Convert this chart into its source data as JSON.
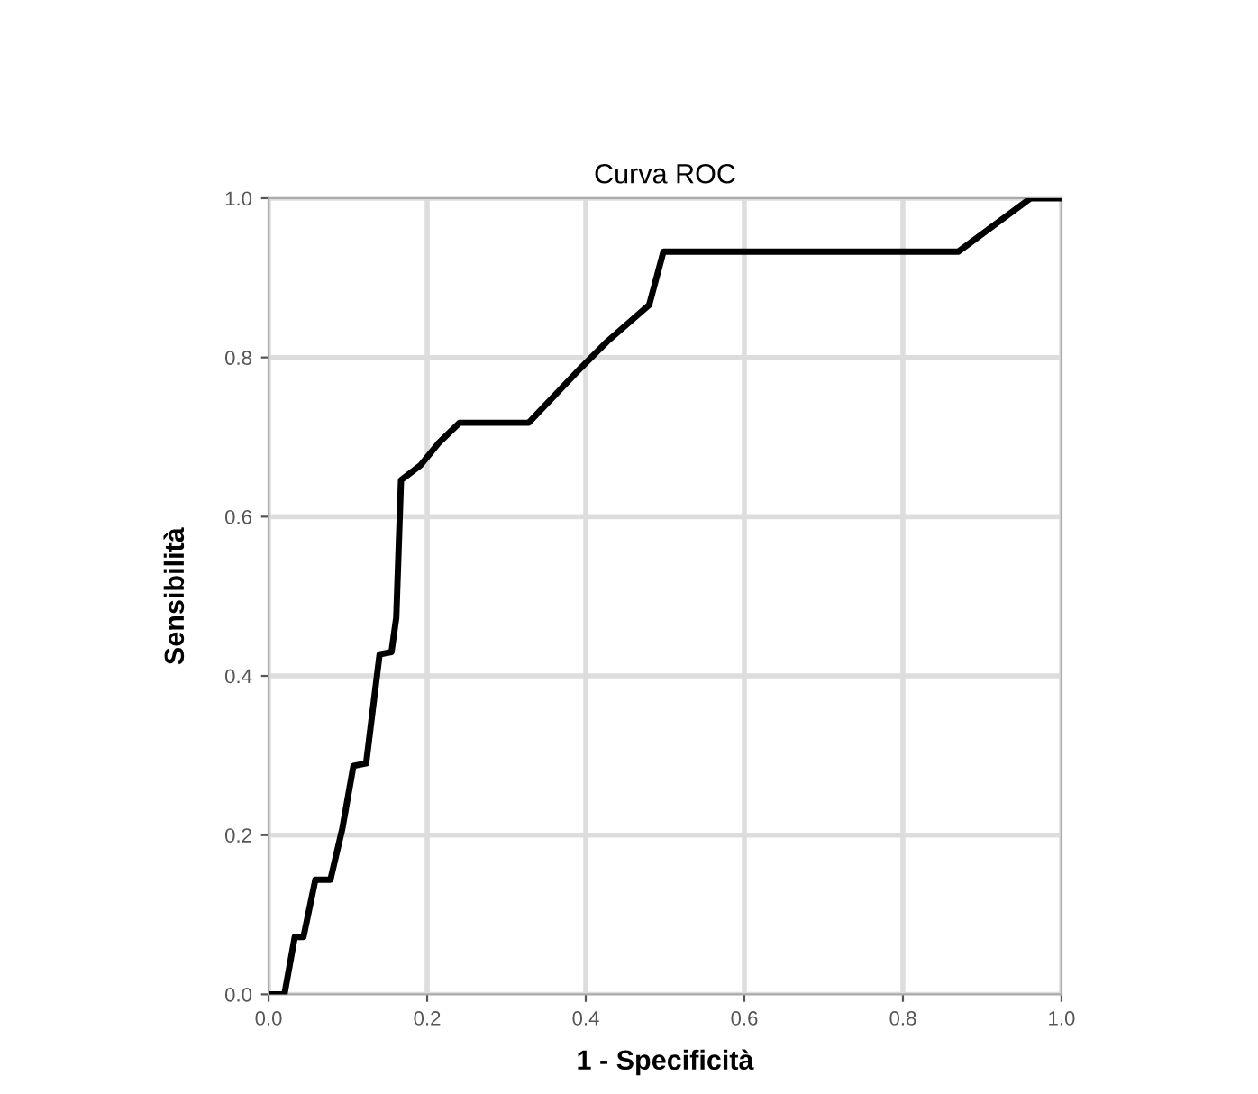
{
  "chart_data": {
    "type": "line",
    "title": "Curva ROC",
    "xlabel": "1 - Specificità",
    "ylabel": "Sensibilità",
    "series": [
      {
        "color": "#000000",
        "x": [
          0.0,
          0.02,
          0.033,
          0.044,
          0.059,
          0.078,
          0.093,
          0.107,
          0.123,
          0.14,
          0.155,
          0.161,
          0.167,
          0.192,
          0.214,
          0.241,
          0.328,
          0.389,
          0.427,
          0.48,
          0.498,
          0.87,
          0.961,
          1.0
        ],
        "values": [
          0.0,
          0.0,
          0.072,
          0.072,
          0.144,
          0.144,
          0.208,
          0.287,
          0.29,
          0.427,
          0.43,
          0.473,
          0.646,
          0.665,
          0.692,
          0.718,
          0.718,
          0.782,
          0.82,
          0.866,
          0.933,
          0.933,
          1.0,
          1.0
        ]
      }
    ],
    "xlim": [
      0,
      1
    ],
    "ylim": [
      0,
      1
    ],
    "xticks": [
      {
        "value": 0,
        "label": "0.0"
      },
      0.2,
      0.4,
      0.6,
      0.8,
      {
        "value": 1,
        "label": "1.0"
      }
    ],
    "yticks": [
      {
        "value": 0,
        "label": "0.0"
      },
      0.2,
      0.4,
      0.6,
      0.8,
      {
        "value": 1,
        "label": "1.0"
      }
    ],
    "grid": true,
    "marker": "none",
    "line_style": "solid",
    "legend": false
  }
}
